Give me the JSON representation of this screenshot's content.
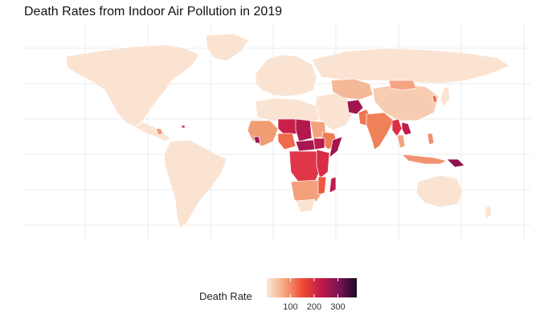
{
  "title": "Death Rates from Indoor Air Pollution in 2019",
  "legend": {
    "title": "Death Rate",
    "ticks": [
      "100",
      "200",
      "300"
    ],
    "tick_values": [
      100,
      200,
      300
    ],
    "range": [
      0,
      380
    ],
    "colors": [
      "#fbe7da",
      "#f6a57a",
      "#ee4b36",
      "#c3194a",
      "#7a1456",
      "#1b0a23"
    ]
  },
  "map_data": {
    "type": "choropleth",
    "variable": "Death Rate",
    "background_fill": "#fbe3d2",
    "regions": [
      {
        "name": "Afghanistan",
        "value": 270
      },
      {
        "name": "Pakistan",
        "value": 130
      },
      {
        "name": "India",
        "value": 120
      },
      {
        "name": "Myanmar",
        "value": 190
      },
      {
        "name": "Laos",
        "value": 210
      },
      {
        "name": "Papua New Guinea",
        "value": 300
      },
      {
        "name": "Madagascar",
        "value": 230
      },
      {
        "name": "Somalia",
        "value": 250
      },
      {
        "name": "Chad",
        "value": 260
      },
      {
        "name": "Niger",
        "value": 220
      },
      {
        "name": "Central African Republic",
        "value": 240
      },
      {
        "name": "South Sudan",
        "value": 230
      },
      {
        "name": "Sierra Leone",
        "value": 250
      },
      {
        "name": "Nigeria",
        "value": 170
      },
      {
        "name": "Ethiopia",
        "value": 150
      },
      {
        "name": "Mozambique",
        "value": 200
      }
    ]
  }
}
